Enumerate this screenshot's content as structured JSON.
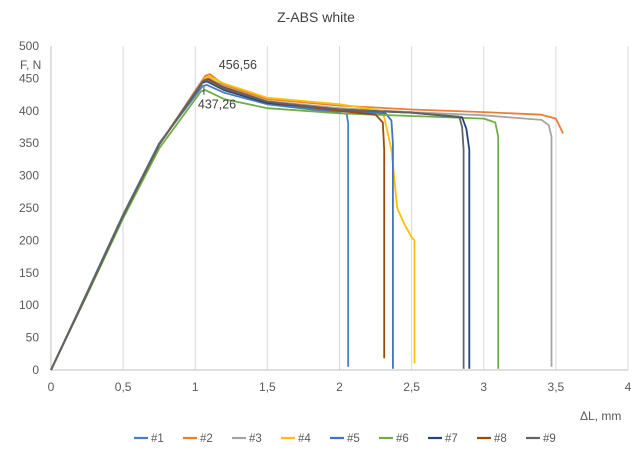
{
  "chart_data": {
    "type": "line",
    "title": "Z-ABS white",
    "xlabel": "ΔL, mm",
    "ylabel": "F, N",
    "xlim": [
      0,
      4
    ],
    "ylim": [
      0,
      500
    ],
    "x_ticks": [
      "0",
      "0,5",
      "1",
      "1,5",
      "2",
      "2,5",
      "3",
      "3,5",
      "4"
    ],
    "y_ticks": [
      "0",
      "50",
      "100",
      "150",
      "200",
      "250",
      "300",
      "350",
      "400",
      "450",
      "500"
    ],
    "grid": "vertical",
    "legend_position": "bottom",
    "annotations": [
      {
        "text": "456,56",
        "x": 1.08,
        "y": 456.56
      },
      {
        "text": "437,26",
        "x": 1.06,
        "y": 437.26
      }
    ],
    "series": [
      {
        "name": "#1",
        "color": "#4a7ebb",
        "x": [
          0,
          0.25,
          0.5,
          0.75,
          1.05,
          1.08,
          1.2,
          1.5,
          2.0,
          2.05,
          2.06,
          2.06
        ],
        "y": [
          0,
          120,
          240,
          350,
          438,
          440,
          428,
          410,
          397,
          395,
          380,
          5
        ]
      },
      {
        "name": "#2",
        "color": "#ed7d31",
        "x": [
          0,
          0.25,
          0.5,
          0.75,
          1.07,
          1.1,
          1.2,
          1.5,
          2.0,
          2.5,
          3.0,
          3.4,
          3.5,
          3.55
        ],
        "y": [
          0,
          118,
          238,
          348,
          454,
          456.56,
          440,
          418,
          408,
          402,
          398,
          394,
          388,
          365
        ]
      },
      {
        "name": "#3",
        "color": "#a5a5a5",
        "x": [
          0,
          0.25,
          0.5,
          0.75,
          1.06,
          1.09,
          1.2,
          1.5,
          2.0,
          2.5,
          3.0,
          3.4,
          3.45,
          3.47,
          3.47
        ],
        "y": [
          0,
          118,
          238,
          348,
          449,
          451,
          438,
          415,
          404,
          398,
          393,
          386,
          378,
          360,
          5
        ]
      },
      {
        "name": "#4",
        "color": "#ffc000",
        "x": [
          0,
          0.25,
          0.5,
          0.75,
          1.07,
          1.1,
          1.2,
          1.5,
          2.0,
          2.3,
          2.36,
          2.4,
          2.45,
          2.5,
          2.52,
          2.52
        ],
        "y": [
          0,
          118,
          238,
          348,
          451,
          453,
          442,
          420,
          410,
          400,
          340,
          250,
          225,
          205,
          200,
          10
        ]
      },
      {
        "name": "#5",
        "color": "#4472c4",
        "x": [
          0,
          0.25,
          0.5,
          0.75,
          1.05,
          1.08,
          1.2,
          1.5,
          2.0,
          2.32,
          2.36,
          2.37,
          2.37
        ],
        "y": [
          0,
          118,
          238,
          348,
          443,
          445,
          432,
          412,
          400,
          396,
          385,
          350,
          2
        ]
      },
      {
        "name": "#6",
        "color": "#70ad47",
        "x": [
          0,
          0.25,
          0.5,
          0.75,
          1.04,
          1.07,
          1.2,
          1.5,
          2.0,
          2.5,
          3.0,
          3.08,
          3.1,
          3.1
        ],
        "y": [
          0,
          116,
          234,
          342,
          430,
          432,
          418,
          404,
          396,
          392,
          388,
          382,
          360,
          2
        ]
      },
      {
        "name": "#7",
        "color": "#264478",
        "x": [
          0,
          0.25,
          0.5,
          0.75,
          1.05,
          1.08,
          1.2,
          1.5,
          2.0,
          2.5,
          2.85,
          2.88,
          2.9,
          2.9
        ],
        "y": [
          0,
          118,
          238,
          348,
          444,
          446,
          432,
          412,
          402,
          397,
          390,
          372,
          340,
          2
        ]
      },
      {
        "name": "#8",
        "color": "#9e480e",
        "x": [
          0,
          0.25,
          0.5,
          0.75,
          1.06,
          1.09,
          1.2,
          1.5,
          2.0,
          2.25,
          2.3,
          2.31,
          2.31
        ],
        "y": [
          0,
          118,
          238,
          348,
          447,
          449,
          436,
          414,
          400,
          394,
          382,
          340,
          18
        ]
      },
      {
        "name": "#9",
        "color": "#636363",
        "x": [
          0,
          0.25,
          0.5,
          0.75,
          1.05,
          1.08,
          1.2,
          1.5,
          2.0,
          2.5,
          2.83,
          2.85,
          2.86,
          2.86
        ],
        "y": [
          0,
          118,
          238,
          348,
          445,
          447,
          434,
          414,
          402,
          397,
          391,
          375,
          340,
          2
        ]
      }
    ]
  }
}
